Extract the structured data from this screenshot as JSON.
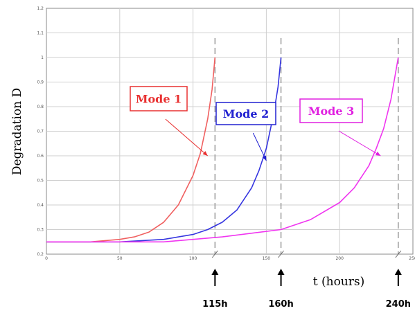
{
  "chart_data": {
    "type": "line",
    "xlabel": "t (hours)",
    "ylabel": "Degradation D",
    "xlim": [
      0,
      250
    ],
    "ylim": [
      0.2,
      1.2
    ],
    "x_ticks": [
      "0",
      "50",
      "100",
      "150",
      "200",
      "250"
    ],
    "y_ticks": [
      "0.2",
      "0.3",
      "0.4",
      "0.5",
      "0.6",
      "0.7",
      "0.8",
      "0.9",
      "1",
      "1.1",
      "1.2"
    ],
    "grid": true,
    "series": [
      {
        "name": "Mode 1",
        "color": "#f06060",
        "x": [
          0,
          30,
          50,
          60,
          70,
          80,
          90,
          100,
          105,
          110,
          113,
          115
        ],
        "y": [
          0.25,
          0.25,
          0.26,
          0.27,
          0.29,
          0.33,
          0.4,
          0.52,
          0.61,
          0.75,
          0.87,
          1.0
        ]
      },
      {
        "name": "Mode 2",
        "color": "#3535e0",
        "x": [
          0,
          50,
          80,
          100,
          110,
          120,
          130,
          140,
          145,
          150,
          155,
          158,
          160
        ],
        "y": [
          0.25,
          0.25,
          0.26,
          0.28,
          0.3,
          0.33,
          0.38,
          0.47,
          0.54,
          0.63,
          0.77,
          0.88,
          1.0
        ]
      },
      {
        "name": "Mode 3",
        "color": "#f035f0",
        "x": [
          0,
          80,
          120,
          160,
          180,
          200,
          210,
          220,
          225,
          230,
          235,
          240
        ],
        "y": [
          0.25,
          0.25,
          0.27,
          0.3,
          0.34,
          0.41,
          0.47,
          0.56,
          0.63,
          0.71,
          0.83,
          1.0
        ]
      }
    ],
    "annotations": [
      {
        "label": "Mode 1",
        "color": "#e83030",
        "points_to": {
          "x": 110,
          "y": 0.6
        }
      },
      {
        "label": "Mode 2",
        "color": "#2020d0",
        "points_to": {
          "x": 150,
          "y": 0.58
        }
      },
      {
        "label": "Mode 3",
        "color": "#e020e0",
        "points_to": {
          "x": 228,
          "y": 0.6
        }
      }
    ],
    "events": [
      {
        "x": 115,
        "label": "115h"
      },
      {
        "x": 160,
        "label": "160h"
      },
      {
        "x": 240,
        "label": "240h"
      }
    ]
  }
}
